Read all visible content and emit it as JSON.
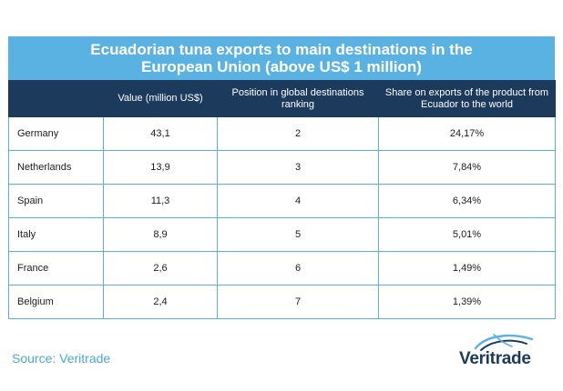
{
  "chart_data": {
    "type": "table",
    "title": "Ecuadorian tuna exports to main destinations in the European Union (above US$ 1 million)",
    "columns": [
      "",
      "Value (million US$)",
      "Position in global destinations ranking",
      "Share on exports of the product from Ecuador to the world"
    ],
    "rows": [
      {
        "country": "Germany",
        "value": "43,1",
        "position": "2",
        "share": "24,17%"
      },
      {
        "country": "Netherlands",
        "value": "13,9",
        "position": "3",
        "share": "7,84%"
      },
      {
        "country": "Spain",
        "value": "11,3",
        "position": "4",
        "share": "6,34%"
      },
      {
        "country": "Italy",
        "value": "8,9",
        "position": "5",
        "share": "5,01%"
      },
      {
        "country": "France",
        "value": "2,6",
        "position": "6",
        "share": "1,49%"
      },
      {
        "country": "Belgium",
        "value": "2,4",
        "position": "7",
        "share": "1,39%"
      }
    ]
  },
  "source": "Source: Veritrade",
  "logo": {
    "text": "Veritrade",
    "icon": "arc-swirl-icon"
  },
  "colors": {
    "title_bar": "#5ab2e3",
    "header_bar": "#1b3a5c",
    "grid": "#5ab2e3",
    "source_text": "#4aa8dd",
    "logo_text": "#1b3a5c"
  }
}
